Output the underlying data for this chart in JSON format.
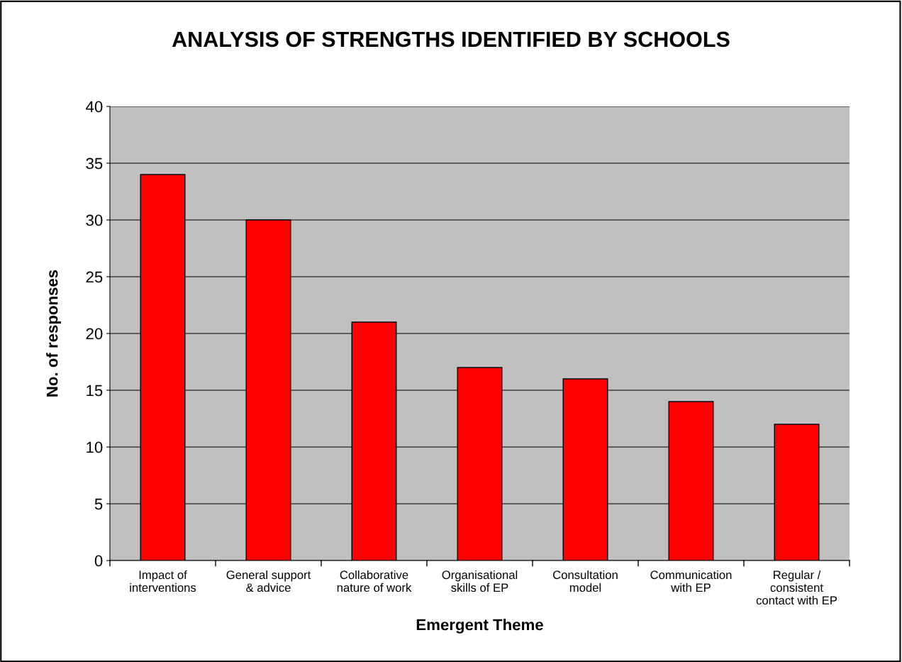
{
  "chart_data": {
    "type": "bar",
    "title": "ANALYSIS OF STRENGTHS IDENTIFIED BY SCHOOLS",
    "xlabel": "Emergent Theme",
    "ylabel": "No. of responses",
    "categories": [
      "Impact of\ninterventions",
      "General support\n& advice",
      "Collaborative\nnature of work",
      "Organisational\nskills of EP",
      "Consultation\nmodel",
      "Communication\nwith EP",
      "Regular /\nconsistent\ncontact with EP"
    ],
    "values": [
      34,
      30,
      21,
      17,
      16,
      14,
      12
    ],
    "color": "#ff0000",
    "ylim": [
      0,
      40
    ],
    "yticks": [
      0,
      5,
      10,
      15,
      20,
      25,
      30,
      35,
      40
    ],
    "grid": "y"
  }
}
